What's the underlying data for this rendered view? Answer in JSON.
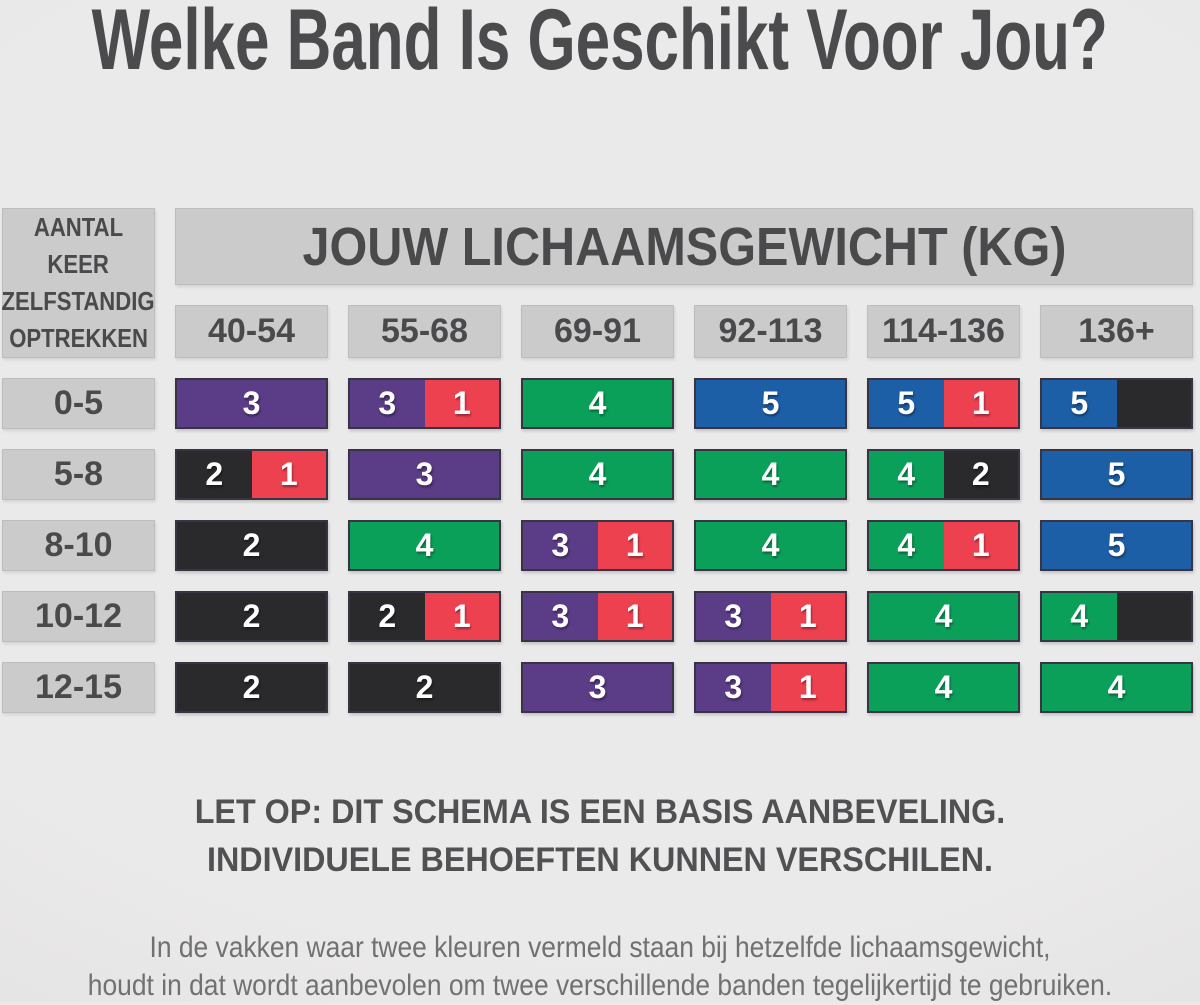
{
  "title": "Welke Band Is Geschikt Voor Jou?",
  "chart_data": {
    "type": "table",
    "title": "Welke Band Is Geschikt Voor Jou?",
    "columns_header": "JOUW LICHAAMSGEWICHT (KG)",
    "rows_header_lines": [
      "AANTAL",
      "KEER",
      "ZELFSTANDIG",
      "OPTREKKEN"
    ],
    "columns": [
      "40-54",
      "55-68",
      "69-91",
      "92-113",
      "114-136",
      "136+"
    ],
    "rows": [
      "0-5",
      "5-8",
      "8-10",
      "10-12",
      "12-15"
    ],
    "cells": [
      [
        [
          {
            "color": "purple",
            "label": "3"
          }
        ],
        [
          {
            "color": "purple",
            "label": "3"
          },
          {
            "color": "red",
            "label": "1"
          }
        ],
        [
          {
            "color": "green",
            "label": "4"
          }
        ],
        [
          {
            "color": "blue",
            "label": "5"
          }
        ],
        [
          {
            "color": "blue",
            "label": "5"
          },
          {
            "color": "red",
            "label": "1"
          }
        ],
        [
          {
            "color": "blue",
            "label": "5"
          },
          {
            "color": "black",
            "label": ""
          }
        ]
      ],
      [
        [
          {
            "color": "black",
            "label": "2"
          },
          {
            "color": "red",
            "label": "1"
          }
        ],
        [
          {
            "color": "purple",
            "label": "3"
          }
        ],
        [
          {
            "color": "green",
            "label": "4"
          }
        ],
        [
          {
            "color": "green",
            "label": "4"
          }
        ],
        [
          {
            "color": "green",
            "label": "4"
          },
          {
            "color": "black",
            "label": "2"
          }
        ],
        [
          {
            "color": "blue",
            "label": "5"
          }
        ]
      ],
      [
        [
          {
            "color": "black",
            "label": "2"
          }
        ],
        [
          {
            "color": "green",
            "label": "4"
          }
        ],
        [
          {
            "color": "purple",
            "label": "3"
          },
          {
            "color": "red",
            "label": "1"
          }
        ],
        [
          {
            "color": "green",
            "label": "4"
          }
        ],
        [
          {
            "color": "green",
            "label": "4"
          },
          {
            "color": "red",
            "label": "1"
          }
        ],
        [
          {
            "color": "blue",
            "label": "5"
          }
        ]
      ],
      [
        [
          {
            "color": "black",
            "label": "2"
          }
        ],
        [
          {
            "color": "black",
            "label": "2"
          },
          {
            "color": "red",
            "label": "1"
          }
        ],
        [
          {
            "color": "purple",
            "label": "3"
          },
          {
            "color": "red",
            "label": "1"
          }
        ],
        [
          {
            "color": "purple",
            "label": "3"
          },
          {
            "color": "red",
            "label": "1"
          }
        ],
        [
          {
            "color": "green",
            "label": "4"
          }
        ],
        [
          {
            "color": "green",
            "label": "4"
          },
          {
            "color": "black",
            "label": ""
          }
        ]
      ],
      [
        [
          {
            "color": "black",
            "label": "2"
          }
        ],
        [
          {
            "color": "black",
            "label": "2"
          }
        ],
        [
          {
            "color": "purple",
            "label": "3"
          }
        ],
        [
          {
            "color": "purple",
            "label": "3"
          },
          {
            "color": "red",
            "label": "1"
          }
        ],
        [
          {
            "color": "green",
            "label": "4"
          }
        ],
        [
          {
            "color": "green",
            "label": "4"
          }
        ]
      ]
    ]
  },
  "colors": {
    "purple": "#5b3c87",
    "red": "#ee4150",
    "green": "#0ba05a",
    "blue": "#1d5fa7",
    "black": "#2a292b",
    "box_gray": "#cbcbcb",
    "text_dark": "#4b4b4d",
    "background": "#e9e8e8"
  },
  "notice": {
    "line1": "LET OP: DIT SCHEMA IS EEN BASIS AANBEVELING.",
    "line2": "INDIVIDUELE BEHOEFTEN KUNNEN VERSCHILEN."
  },
  "footnote": {
    "line1": "In de vakken waar twee kleuren vermeld staan bij hetzelfde lichaamsgewicht,",
    "line2": "houdt in dat wordt aanbevolen om twee verschillende banden tegelijkertijd te gebruiken."
  }
}
